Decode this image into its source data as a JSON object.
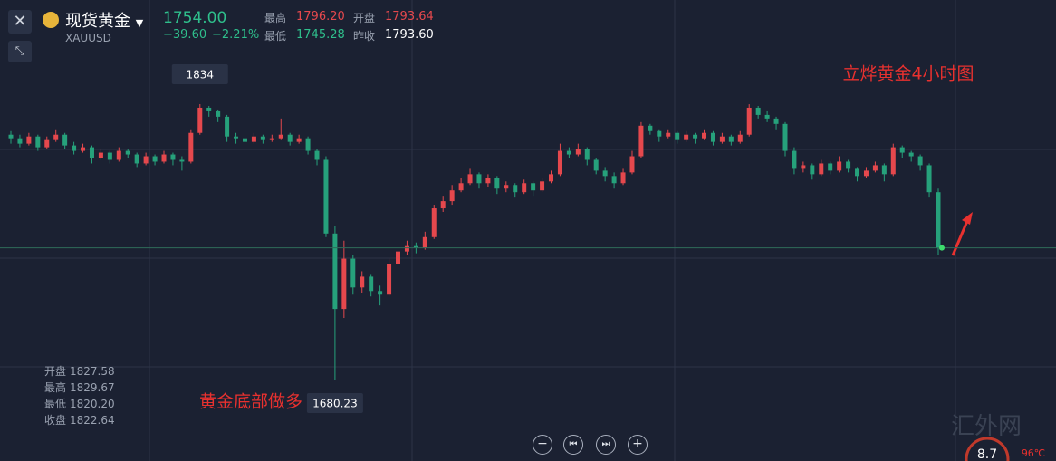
{
  "header": {
    "name": "现货黄金",
    "symbol": "XAUUSD",
    "price": "1754.00",
    "change": "−39.60",
    "change_pct": "−2.21%",
    "stats": [
      {
        "label": "最高",
        "value": "1796.20"
      },
      {
        "label": "开盘",
        "value": "1793.64"
      },
      {
        "label": "最低",
        "value": "1745.28"
      },
      {
        "label": "昨收",
        "value": "1793.60"
      }
    ]
  },
  "chart_data": {
    "type": "candlestick",
    "up_color": "#e5484d",
    "down_color": "#26a17b",
    "annotations": [
      "立烨黄金4小时图",
      "黄金底部做多"
    ],
    "ohlc_panel": [
      {
        "label": "开盘",
        "value": "1827.58"
      },
      {
        "label": "最高",
        "value": "1829.67"
      },
      {
        "label": "最低",
        "value": "1820.20"
      },
      {
        "label": "收盘",
        "value": "1822.64"
      }
    ],
    "candles": [
      [
        1817,
        1819,
        1812,
        1815
      ],
      [
        1815,
        1817,
        1810,
        1812
      ],
      [
        1812,
        1818,
        1811,
        1816
      ],
      [
        1816,
        1817,
        1808,
        1810
      ],
      [
        1810,
        1816,
        1809,
        1814
      ],
      [
        1814,
        1820,
        1813,
        1817
      ],
      [
        1817,
        1818,
        1809,
        1811
      ],
      [
        1811,
        1813,
        1806,
        1808
      ],
      [
        1808,
        1812,
        1807,
        1810
      ],
      [
        1810,
        1811,
        1801,
        1804
      ],
      [
        1804,
        1809,
        1803,
        1807
      ],
      [
        1807,
        1808,
        1801,
        1803
      ],
      [
        1803,
        1810,
        1802,
        1808
      ],
      [
        1808,
        1809,
        1804,
        1806
      ],
      [
        1806,
        1807,
        1799,
        1801
      ],
      [
        1801,
        1807,
        1800,
        1805
      ],
      [
        1805,
        1806,
        1800,
        1802
      ],
      [
        1802,
        1808,
        1801,
        1806
      ],
      [
        1806,
        1807,
        1800,
        1803
      ],
      [
        1803,
        1805,
        1797,
        1802
      ],
      [
        1802,
        1820,
        1801,
        1818
      ],
      [
        1818,
        1834,
        1817,
        1832
      ],
      [
        1832,
        1833,
        1827,
        1830
      ],
      [
        1830,
        1831,
        1824,
        1827
      ],
      [
        1827,
        1828,
        1813,
        1816
      ],
      [
        1816,
        1818,
        1812,
        1815
      ],
      [
        1815,
        1817,
        1811,
        1813
      ],
      [
        1813,
        1818,
        1812,
        1816
      ],
      [
        1816,
        1817,
        1812,
        1814
      ],
      [
        1814,
        1817,
        1813,
        1815
      ],
      [
        1815,
        1826,
        1814,
        1817
      ],
      [
        1817,
        1818,
        1811,
        1813
      ],
      [
        1813,
        1817,
        1812,
        1815
      ],
      [
        1815,
        1816,
        1806,
        1808
      ],
      [
        1808,
        1809,
        1800,
        1803
      ],
      [
        1803,
        1805,
        1760,
        1762
      ],
      [
        1762,
        1766,
        1680.23,
        1720
      ],
      [
        1720,
        1758,
        1715,
        1748
      ],
      [
        1748,
        1750,
        1728,
        1732
      ],
      [
        1732,
        1741,
        1729,
        1738
      ],
      [
        1738,
        1739,
        1727,
        1730
      ],
      [
        1730,
        1733,
        1722,
        1728
      ],
      [
        1728,
        1748,
        1727,
        1745
      ],
      [
        1745,
        1755,
        1743,
        1752
      ],
      [
        1752,
        1758,
        1750,
        1755
      ],
      [
        1755,
        1757,
        1751,
        1754
      ],
      [
        1754,
        1763,
        1753,
        1760
      ],
      [
        1760,
        1778,
        1759,
        1776
      ],
      [
        1776,
        1783,
        1774,
        1780
      ],
      [
        1780,
        1789,
        1778,
        1786
      ],
      [
        1786,
        1793,
        1785,
        1790
      ],
      [
        1790,
        1798,
        1789,
        1795
      ],
      [
        1795,
        1796,
        1787,
        1790
      ],
      [
        1790,
        1795,
        1788,
        1793
      ],
      [
        1793,
        1794,
        1784,
        1787
      ],
      [
        1787,
        1791,
        1785,
        1789
      ],
      [
        1789,
        1790,
        1782,
        1785
      ],
      [
        1785,
        1792,
        1784,
        1790
      ],
      [
        1790,
        1791,
        1783,
        1786
      ],
      [
        1786,
        1793,
        1785,
        1791
      ],
      [
        1791,
        1797,
        1790,
        1795
      ],
      [
        1795,
        1812,
        1794,
        1808
      ],
      [
        1808,
        1810,
        1804,
        1806
      ],
      [
        1806,
        1812,
        1805,
        1809
      ],
      [
        1809,
        1810,
        1800,
        1803
      ],
      [
        1803,
        1804,
        1795,
        1797
      ],
      [
        1797,
        1799,
        1791,
        1794
      ],
      [
        1794,
        1796,
        1787,
        1790
      ],
      [
        1790,
        1798,
        1789,
        1796
      ],
      [
        1796,
        1808,
        1795,
        1805
      ],
      [
        1805,
        1824,
        1804,
        1822
      ],
      [
        1822,
        1823,
        1817,
        1819
      ],
      [
        1819,
        1820,
        1813,
        1816
      ],
      [
        1816,
        1820,
        1815,
        1818
      ],
      [
        1818,
        1819,
        1812,
        1814
      ],
      [
        1814,
        1819,
        1813,
        1817
      ],
      [
        1817,
        1818,
        1812,
        1815
      ],
      [
        1815,
        1820,
        1814,
        1818
      ],
      [
        1818,
        1819,
        1811,
        1813
      ],
      [
        1813,
        1818,
        1812,
        1816
      ],
      [
        1816,
        1817,
        1811,
        1813
      ],
      [
        1813,
        1819,
        1812,
        1817
      ],
      [
        1817,
        1833.96,
        1816,
        1832
      ],
      [
        1832,
        1833,
        1826,
        1828
      ],
      [
        1828,
        1830,
        1824,
        1826
      ],
      [
        1826,
        1827,
        1820,
        1823
      ],
      [
        1823,
        1824,
        1805,
        1808
      ],
      [
        1808,
        1810,
        1795,
        1798
      ],
      [
        1798,
        1802,
        1796,
        1800
      ],
      [
        1800,
        1801,
        1792,
        1795
      ],
      [
        1795,
        1803,
        1794,
        1801
      ],
      [
        1801,
        1802,
        1795,
        1797
      ],
      [
        1797,
        1805,
        1796,
        1802
      ],
      [
        1802,
        1803,
        1796,
        1798
      ],
      [
        1798,
        1799,
        1791,
        1794
      ],
      [
        1794,
        1799,
        1793,
        1797
      ],
      [
        1797,
        1802,
        1796,
        1800
      ],
      [
        1800,
        1801,
        1791,
        1795
      ],
      [
        1795,
        1812,
        1794,
        1810
      ],
      [
        1810,
        1811,
        1804,
        1807
      ],
      [
        1807,
        1808,
        1802,
        1805
      ],
      [
        1805,
        1806,
        1797,
        1800
      ],
      [
        1800,
        1801,
        1782,
        1785
      ],
      [
        1785,
        1787,
        1750,
        1754
      ]
    ]
  },
  "watermark": {
    "text": "汇外网",
    "gauge": "8.7",
    "temp": "96℃"
  }
}
